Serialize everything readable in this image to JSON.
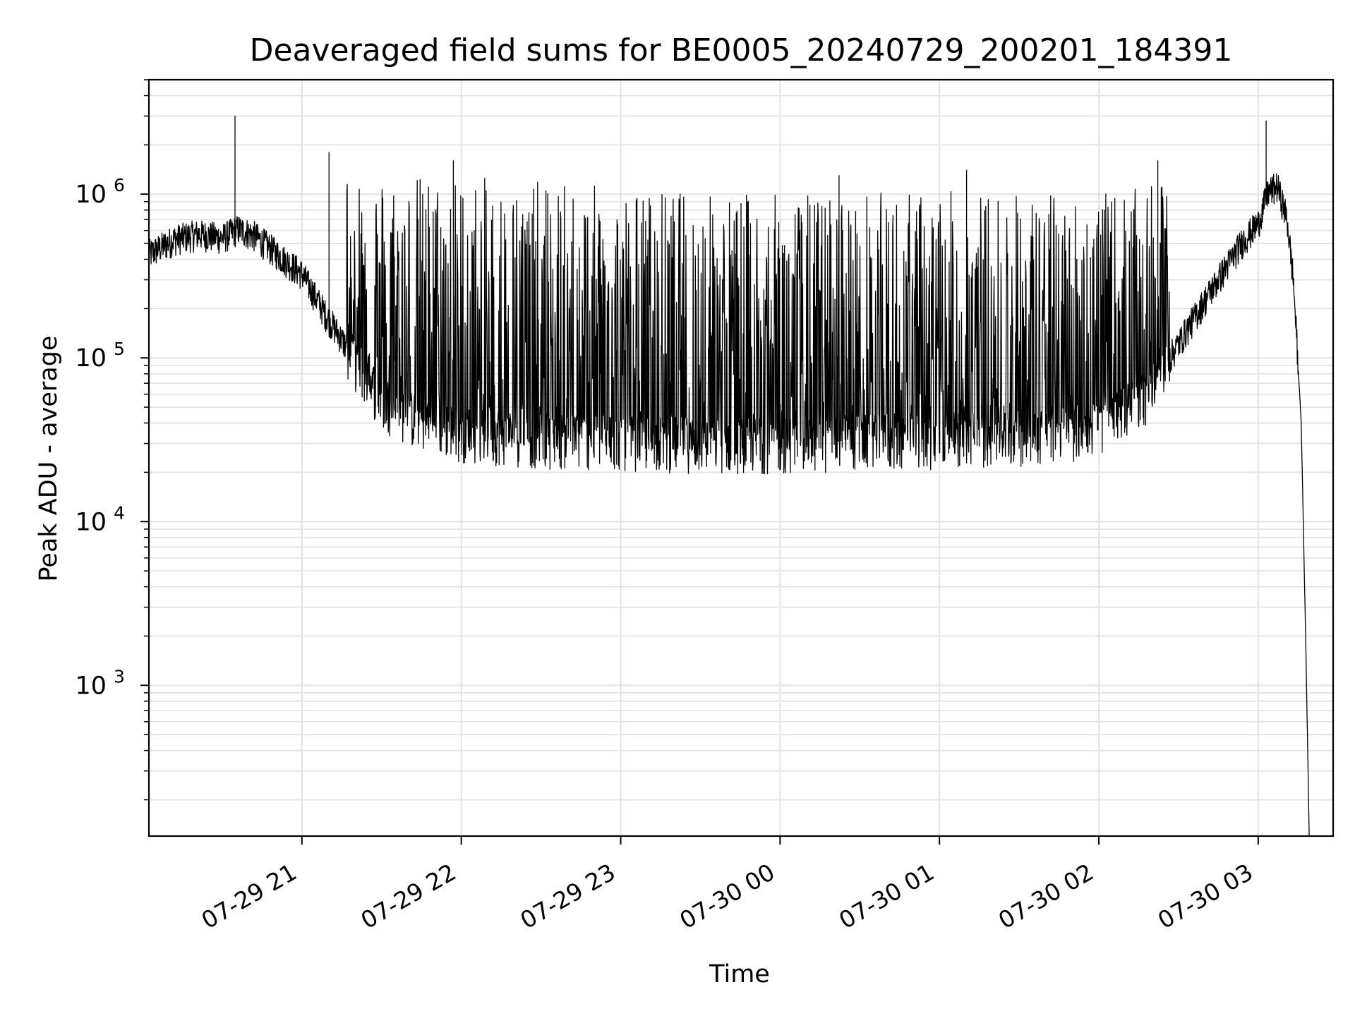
{
  "chart_data": {
    "type": "line",
    "title": "Deaveraged field sums for BE0005_20240729_200201_184391",
    "xlabel": "Time",
    "ylabel": "Peak ADU - average",
    "yscale": "log",
    "grid": true,
    "xlim_hours": [
      20.04,
      27.47
    ],
    "ylim": [
      120,
      5000000
    ],
    "x_ticks": [
      {
        "hour": 21,
        "label": "07-29 21"
      },
      {
        "hour": 22,
        "label": "07-29 22"
      },
      {
        "hour": 23,
        "label": "07-29 23"
      },
      {
        "hour": 24,
        "label": "07-30 00"
      },
      {
        "hour": 25,
        "label": "07-30 01"
      },
      {
        "hour": 26,
        "label": "07-30 02"
      },
      {
        "hour": 27,
        "label": "07-30 03"
      }
    ],
    "y_ticks": [
      {
        "value": 1000,
        "base": "10",
        "exp": "3"
      },
      {
        "value": 10000,
        "base": "10",
        "exp": "4"
      },
      {
        "value": 100000,
        "base": "10",
        "exp": "5"
      },
      {
        "value": 1000000,
        "base": "10",
        "exp": "6"
      }
    ],
    "series": [
      {
        "color": "#000000",
        "baseline": {
          "x": [
            20.04,
            20.2,
            20.35,
            20.5,
            20.6,
            20.7,
            20.85,
            21.0,
            21.15,
            21.35,
            21.5,
            21.7,
            22.0,
            22.5,
            23.0,
            23.5,
            24.0,
            24.5,
            25.0,
            25.5,
            25.9,
            26.1,
            26.3,
            26.5,
            26.7,
            26.9,
            27.0,
            27.06,
            27.12,
            27.18,
            27.22,
            27.27,
            27.3,
            27.32
          ],
          "y": [
            420000,
            520000,
            560000,
            530000,
            600000,
            550000,
            420000,
            320000,
            180000,
            90000,
            55000,
            42000,
            35000,
            32000,
            31000,
            30000,
            30000,
            31000,
            32000,
            33000,
            36000,
            42000,
            60000,
            120000,
            250000,
            500000,
            650000,
            1000000,
            1100000,
            700000,
            300000,
            40000,
            1500,
            120
          ]
        },
        "upper_envelope": {
          "x": [
            21.2,
            21.5,
            22.0,
            22.5,
            23.0,
            23.5,
            24.0,
            24.5,
            25.0,
            25.5,
            26.0,
            26.3,
            26.5
          ],
          "y": [
            1500000,
            1400000,
            1300000,
            1200000,
            1100000,
            1050000,
            1000000,
            1050000,
            1050000,
            1050000,
            1000000,
            1100000,
            1200000
          ]
        },
        "spikes": [
          {
            "x": 20.58,
            "y": 3000000
          },
          {
            "x": 21.17,
            "y": 1800000
          },
          {
            "x": 21.95,
            "y": 1600000
          },
          {
            "x": 24.37,
            "y": 1300000
          },
          {
            "x": 25.17,
            "y": 1400000
          },
          {
            "x": 26.37,
            "y": 1600000
          },
          {
            "x": 27.05,
            "y": 2800000
          }
        ]
      }
    ]
  }
}
